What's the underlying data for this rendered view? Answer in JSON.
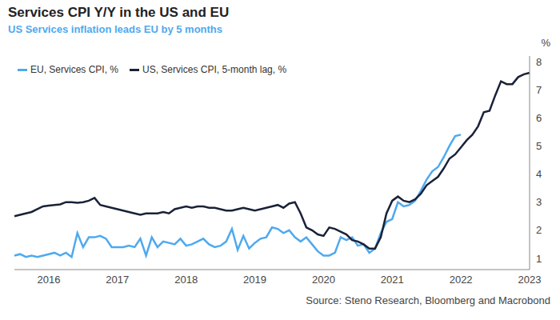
{
  "chart_data": {
    "type": "line",
    "title": "Services CPI Y/Y in the US and EU",
    "subtitle": "US Services inflation leads EU by 5 months",
    "ylabel": "%",
    "source": "Source: Steno Research, Bloomberg and Macrobond",
    "categories": [
      null,
      null,
      null,
      null,
      null,
      null,
      "2016",
      null,
      null,
      null,
      null,
      null,
      null,
      null,
      null,
      null,
      null,
      null,
      "2017",
      null,
      null,
      null,
      null,
      null,
      null,
      null,
      null,
      null,
      null,
      null,
      "2018",
      null,
      null,
      null,
      null,
      null,
      null,
      null,
      null,
      null,
      null,
      null,
      "2019",
      null,
      null,
      null,
      null,
      null,
      null,
      null,
      null,
      null,
      null,
      null,
      "2020",
      null,
      null,
      null,
      null,
      null,
      null,
      null,
      null,
      null,
      null,
      null,
      "2021",
      null,
      null,
      null,
      null,
      null,
      null,
      null,
      null,
      null,
      null,
      null,
      "2022",
      null,
      null,
      null,
      null,
      null,
      null,
      null,
      null,
      null,
      null,
      null,
      "2023"
    ],
    "series": [
      {
        "name": "EU, Services CPI, %",
        "color": "#4fa9ee",
        "values": [
          1.1,
          1.15,
          1.05,
          1.1,
          1.05,
          1.1,
          1.15,
          1.2,
          1.1,
          1.2,
          1.05,
          1.9,
          1.4,
          1.75,
          1.75,
          1.8,
          1.7,
          1.4,
          1.4,
          1.4,
          1.45,
          1.4,
          1.7,
          1.1,
          1.75,
          1.4,
          1.6,
          1.55,
          1.5,
          1.7,
          1.45,
          1.5,
          1.6,
          1.7,
          1.5,
          1.4,
          1.45,
          1.6,
          2.05,
          1.3,
          1.8,
          1.35,
          1.55,
          1.7,
          1.75,
          2.1,
          2.05,
          1.9,
          2.0,
          1.75,
          1.6,
          1.75,
          1.5,
          1.25,
          1.1,
          1.1,
          1.2,
          1.75,
          1.65,
          1.75,
          1.45,
          1.5,
          1.2,
          1.35,
          1.9,
          2.3,
          2.4,
          3.0,
          2.85,
          2.9,
          3.05,
          3.4,
          3.8,
          4.1,
          4.25,
          4.6,
          5.0,
          5.35,
          5.4,
          null,
          null,
          null,
          null,
          null,
          null,
          null,
          null,
          null,
          null,
          null,
          null
        ]
      },
      {
        "name": "US, Services CPI, 5-month lag, %",
        "color": "#1a2238",
        "values": [
          2.5,
          2.55,
          2.6,
          2.65,
          2.75,
          2.85,
          2.88,
          2.9,
          2.92,
          3.0,
          3.0,
          2.98,
          3.0,
          3.05,
          3.15,
          2.9,
          2.85,
          2.8,
          2.75,
          2.7,
          2.65,
          2.6,
          2.55,
          2.6,
          2.6,
          2.6,
          2.65,
          2.6,
          2.75,
          2.8,
          2.85,
          2.8,
          2.85,
          2.85,
          2.8,
          2.8,
          2.75,
          2.7,
          2.7,
          2.75,
          2.8,
          2.75,
          2.7,
          2.75,
          2.8,
          2.85,
          2.9,
          2.8,
          2.95,
          3.0,
          2.6,
          2.1,
          2.0,
          1.85,
          1.8,
          2.1,
          2.05,
          1.95,
          1.85,
          1.65,
          1.6,
          1.5,
          1.35,
          1.35,
          1.75,
          2.6,
          3.05,
          3.2,
          3.05,
          3.0,
          3.1,
          3.3,
          3.6,
          3.75,
          3.9,
          4.2,
          4.55,
          4.7,
          4.95,
          5.2,
          5.4,
          5.7,
          6.2,
          6.25,
          6.8,
          7.3,
          7.2,
          7.2,
          7.45,
          7.55,
          7.6
        ]
      }
    ],
    "ylim": [
      0.6,
      8.2
    ],
    "yticks": [
      1,
      2,
      3,
      4,
      5,
      6,
      7,
      8
    ],
    "grid": false,
    "legend": "upper left"
  }
}
